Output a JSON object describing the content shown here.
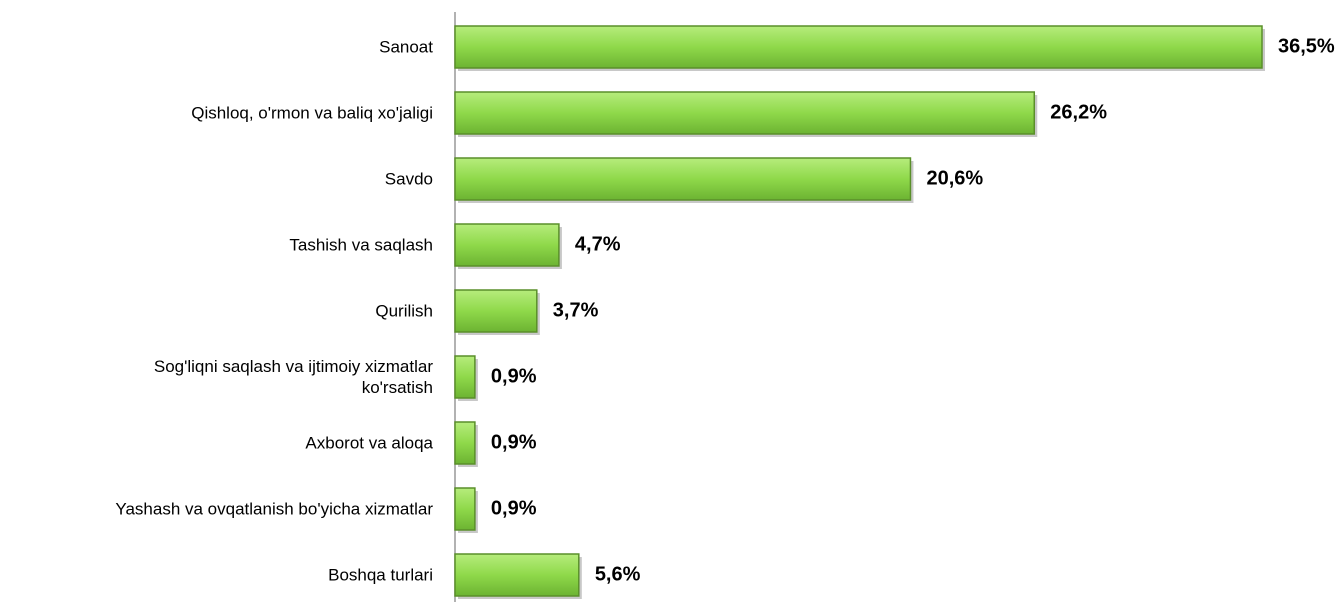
{
  "chart_data": {
    "type": "bar",
    "orientation": "horizontal",
    "categories": [
      "Sanoat",
      "Qishloq, o'rmon va baliq xo'jaligi",
      "Savdo",
      "Tashish va saqlash",
      "Qurilish",
      "Sog'liqni saqlash va ijtimoiy xizmatlar\nko'rsatish",
      "Axborot va aloqa",
      "Yashash va ovqatlanish bo'yicha xizmatlar",
      "Boshqa turlari"
    ],
    "values": [
      36.5,
      26.2,
      20.6,
      4.7,
      3.7,
      0.9,
      0.9,
      0.9,
      5.6
    ],
    "value_labels": [
      "36,5%",
      "26,2%",
      "20,6%",
      "4,7%",
      "3,7%",
      "0,9%",
      "0,9%",
      "0,9%",
      "5,6%"
    ],
    "color": "#8fd94a"
  }
}
